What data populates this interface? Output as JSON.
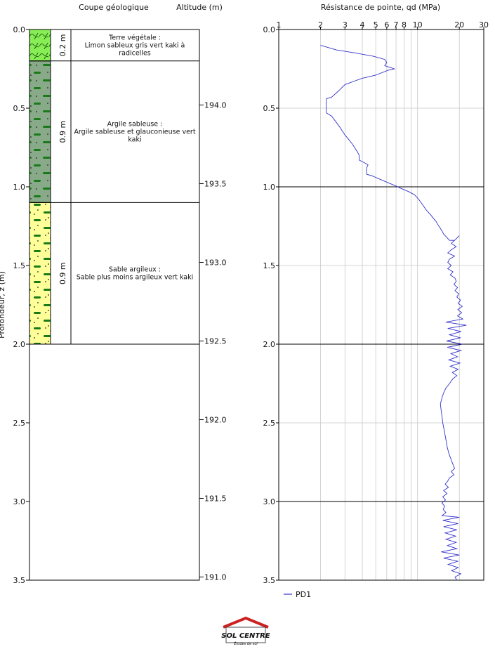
{
  "headers": {
    "log": "Coupe géologique",
    "altitude": "Altitude (m)",
    "resistance": "Résistance de pointe, qd (MPa)",
    "depth_axis": "Profondeur, z (m)"
  },
  "depth_ticks": [
    "0.0",
    "0.5",
    "1.0",
    "1.5",
    "2.0",
    "2.5",
    "3.0",
    "3.5"
  ],
  "altitude_ticks": [
    {
      "label": "194.0",
      "value": 194.0
    },
    {
      "label": "193.5",
      "value": 193.5
    },
    {
      "label": "193.0",
      "value": 193.0
    },
    {
      "label": "192.5",
      "value": 192.5
    },
    {
      "label": "192.0",
      "value": 192.0
    },
    {
      "label": "191.5",
      "value": 191.5
    },
    {
      "label": "191.0",
      "value": 191.0
    }
  ],
  "layers": [
    {
      "top": 0.0,
      "bottom": 0.2,
      "thickness": "0.2 m",
      "pattern": "topsoil",
      "name": "Terre végétale :",
      "desc": [
        "Limon sableux gris vert kaki à",
        "radicelles"
      ]
    },
    {
      "top": 0.2,
      "bottom": 1.1,
      "thickness": "0.9 m",
      "pattern": "clay",
      "name": "Argile sableuse :",
      "desc": [
        "Argile sableuse et glauconieuse vert",
        "kaki"
      ]
    },
    {
      "top": 1.1,
      "bottom": 2.0,
      "thickness": "0.9 m",
      "pattern": "sand",
      "name": "Sable argileux :",
      "desc": [
        "Sable plus moins argileux vert kaki"
      ]
    }
  ],
  "legend": {
    "series": "PD1"
  },
  "logo": {
    "name": "SOL CENTRE",
    "tagline": "Études de sol"
  },
  "colors": {
    "series": "#3333cc",
    "topsoil_fill": "#88ee55",
    "topsoil_line": "#226611",
    "clay_fill": "#88aa88",
    "sand_fill": "#ffff99",
    "mark_green": "#1a7a1a",
    "logo_red": "#cc2222"
  },
  "chart_data": {
    "type": "line",
    "title": "Résistance de pointe, qd (MPa)",
    "xlabel": "Résistance de pointe, qd (MPa)",
    "ylabel": "Profondeur, z (m)",
    "xscale": "log",
    "xlim": [
      1,
      30
    ],
    "ylim": [
      0,
      3.5
    ],
    "y_inverted": true,
    "x_ticks": [
      {
        "label": "1",
        "value": 1
      },
      {
        "label": "2",
        "value": 2
      },
      {
        "label": "3",
        "value": 3
      },
      {
        "label": "4",
        "value": 4
      },
      {
        "label": "5",
        "value": 5
      },
      {
        "label": "6",
        "value": 6
      },
      {
        "label": "7",
        "value": 7
      },
      {
        "label": "8",
        "value": 8
      },
      {
        "label": "10",
        "value": 10
      },
      {
        "label": "20",
        "value": 20
      },
      {
        "label": "30",
        "value": 30
      }
    ],
    "y_ticks": [
      0.0,
      0.5,
      1.0,
      1.5,
      2.0,
      2.5,
      3.0,
      3.5
    ],
    "grid": true,
    "legend_position": "bottom-left",
    "series": [
      {
        "name": "PD1",
        "points": [
          [
            2.0,
            0.1
          ],
          [
            2.6,
            0.13
          ],
          [
            3.6,
            0.15
          ],
          [
            4.8,
            0.17
          ],
          [
            5.8,
            0.19
          ],
          [
            6.0,
            0.21
          ],
          [
            5.8,
            0.23
          ],
          [
            6.3,
            0.24
          ],
          [
            6.8,
            0.25
          ],
          [
            6.1,
            0.26
          ],
          [
            5.0,
            0.29
          ],
          [
            4.0,
            0.31
          ],
          [
            3.0,
            0.35
          ],
          [
            2.7,
            0.39
          ],
          [
            2.4,
            0.43
          ],
          [
            2.2,
            0.44
          ],
          [
            2.2,
            0.5
          ],
          [
            2.2,
            0.53
          ],
          [
            2.4,
            0.55
          ],
          [
            2.6,
            0.59
          ],
          [
            2.8,
            0.63
          ],
          [
            3.0,
            0.67
          ],
          [
            3.2,
            0.7
          ],
          [
            3.4,
            0.73
          ],
          [
            3.7,
            0.78
          ],
          [
            3.8,
            0.8
          ],
          [
            3.8,
            0.83
          ],
          [
            4.2,
            0.85
          ],
          [
            4.4,
            0.86
          ],
          [
            4.3,
            0.88
          ],
          [
            4.3,
            0.9
          ],
          [
            4.3,
            0.92
          ],
          [
            4.7,
            0.93
          ],
          [
            5.3,
            0.95
          ],
          [
            6.0,
            0.97
          ],
          [
            6.8,
            0.99
          ],
          [
            7.6,
            1.01
          ],
          [
            8.6,
            1.03
          ],
          [
            9.5,
            1.05
          ],
          [
            10.2,
            1.08
          ],
          [
            10.8,
            1.11
          ],
          [
            11.4,
            1.14
          ],
          [
            11.9,
            1.16
          ],
          [
            12.5,
            1.18
          ],
          [
            13.0,
            1.2
          ],
          [
            13.6,
            1.22
          ],
          [
            14.0,
            1.24
          ],
          [
            14.5,
            1.26
          ],
          [
            15.0,
            1.28
          ],
          [
            15.4,
            1.3
          ],
          [
            16.2,
            1.32
          ],
          [
            17.0,
            1.34
          ],
          [
            18.5,
            1.34
          ],
          [
            20.0,
            1.31
          ],
          [
            19.0,
            1.33
          ],
          [
            17.5,
            1.36
          ],
          [
            19.0,
            1.38
          ],
          [
            17.5,
            1.4
          ],
          [
            16.5,
            1.42
          ],
          [
            18.5,
            1.44
          ],
          [
            17.0,
            1.46
          ],
          [
            16.5,
            1.48
          ],
          [
            17.5,
            1.5
          ],
          [
            16.5,
            1.52
          ],
          [
            18.0,
            1.54
          ],
          [
            17.2,
            1.56
          ],
          [
            18.6,
            1.58
          ],
          [
            19.0,
            1.6
          ],
          [
            18.3,
            1.62
          ],
          [
            19.4,
            1.64
          ],
          [
            18.6,
            1.66
          ],
          [
            19.8,
            1.68
          ],
          [
            19.2,
            1.7
          ],
          [
            20.4,
            1.72
          ],
          [
            19.6,
            1.74
          ],
          [
            21.0,
            1.76
          ],
          [
            19.5,
            1.78
          ],
          [
            20.8,
            1.8
          ],
          [
            19.4,
            1.82
          ],
          [
            21.2,
            1.84
          ],
          [
            16.0,
            1.86
          ],
          [
            22.5,
            1.88
          ],
          [
            16.5,
            1.9
          ],
          [
            20.6,
            1.92
          ],
          [
            17.0,
            1.94
          ],
          [
            20.3,
            1.96
          ],
          [
            16.2,
            1.98
          ],
          [
            21.0,
            2.0
          ],
          [
            16.4,
            2.02
          ],
          [
            20.6,
            2.04
          ],
          [
            17.4,
            2.06
          ],
          [
            19.4,
            2.08
          ],
          [
            16.8,
            2.1
          ],
          [
            20.2,
            2.12
          ],
          [
            17.2,
            2.14
          ],
          [
            19.6,
            2.16
          ],
          [
            17.8,
            2.18
          ],
          [
            19.2,
            2.2
          ],
          [
            18.0,
            2.22
          ],
          [
            17.0,
            2.25
          ],
          [
            16.0,
            2.28
          ],
          [
            15.4,
            2.31
          ],
          [
            15.0,
            2.34
          ],
          [
            14.6,
            2.38
          ],
          [
            14.8,
            2.42
          ],
          [
            15.0,
            2.46
          ],
          [
            15.2,
            2.5
          ],
          [
            15.5,
            2.54
          ],
          [
            15.8,
            2.58
          ],
          [
            16.1,
            2.62
          ],
          [
            16.4,
            2.66
          ],
          [
            16.9,
            2.7
          ],
          [
            17.4,
            2.73
          ],
          [
            17.9,
            2.76
          ],
          [
            18.5,
            2.79
          ],
          [
            17.5,
            2.81
          ],
          [
            18.3,
            2.83
          ],
          [
            17.0,
            2.85
          ],
          [
            16.5,
            2.87
          ],
          [
            15.8,
            2.89
          ],
          [
            16.7,
            2.91
          ],
          [
            15.4,
            2.93
          ],
          [
            16.3,
            2.95
          ],
          [
            15.2,
            2.97
          ],
          [
            15.9,
            2.99
          ],
          [
            15.0,
            3.01
          ],
          [
            15.7,
            3.03
          ],
          [
            15.3,
            3.05
          ],
          [
            16.0,
            3.07
          ],
          [
            15.0,
            3.09
          ],
          [
            20.0,
            3.1
          ],
          [
            15.2,
            3.12
          ],
          [
            19.6,
            3.14
          ],
          [
            15.4,
            3.16
          ],
          [
            19.2,
            3.18
          ],
          [
            15.8,
            3.2
          ],
          [
            18.8,
            3.22
          ],
          [
            16.0,
            3.24
          ],
          [
            19.0,
            3.26
          ],
          [
            16.4,
            3.28
          ],
          [
            19.2,
            3.3
          ],
          [
            14.8,
            3.32
          ],
          [
            20.0,
            3.34
          ],
          [
            15.4,
            3.36
          ],
          [
            19.5,
            3.38
          ],
          [
            16.6,
            3.4
          ],
          [
            19.6,
            3.42
          ],
          [
            17.6,
            3.44
          ],
          [
            20.5,
            3.46
          ],
          [
            18.6,
            3.48
          ],
          [
            19.2,
            3.5
          ]
        ]
      }
    ]
  }
}
